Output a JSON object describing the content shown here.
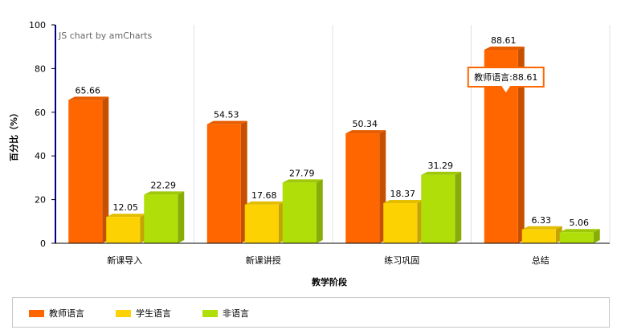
{
  "chart_data": {
    "type": "bar",
    "credit": "JS chart by amCharts",
    "categories": [
      "新课导入",
      "新课讲授",
      "练习巩固",
      "总结"
    ],
    "series": [
      {
        "name": "教师语言",
        "color": "#ff6600",
        "values": [
          65.66,
          54.53,
          50.34,
          88.61
        ]
      },
      {
        "name": "学生语言",
        "color": "#fcd202",
        "values": [
          12.05,
          17.68,
          18.37,
          6.33
        ]
      },
      {
        "name": "非语言",
        "color": "#b0de09",
        "values": [
          22.29,
          27.79,
          31.29,
          5.06
        ]
      }
    ],
    "xlabel": "教学阶段",
    "ylabel": "百分比（%）",
    "ylim": [
      0,
      100
    ],
    "yticks": [
      0,
      20,
      40,
      60,
      80,
      100
    ],
    "grid": "vertical category separators",
    "legend_position": "bottom",
    "tooltip": {
      "series_index": 0,
      "category_index": 3,
      "text": "教师语言:88.61",
      "border_color": "#ff6600"
    }
  }
}
